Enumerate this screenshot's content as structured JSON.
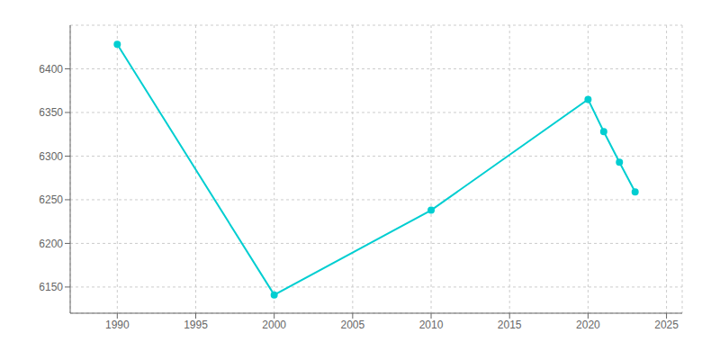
{
  "chart_data": {
    "type": "line",
    "x": [
      1990,
      2000,
      2010,
      2020,
      2021,
      2022,
      2023
    ],
    "values": [
      6428,
      6141,
      6238,
      6365,
      6328,
      6293,
      6259
    ],
    "color": "#00CED1",
    "marker": "circle",
    "xlim": [
      1987,
      2026
    ],
    "ylim": [
      6120,
      6450
    ],
    "xticks": [
      1990,
      1995,
      2000,
      2005,
      2010,
      2015,
      2020,
      2025
    ],
    "yticks": [
      6150,
      6200,
      6250,
      6300,
      6350,
      6400
    ],
    "grid": true
  }
}
